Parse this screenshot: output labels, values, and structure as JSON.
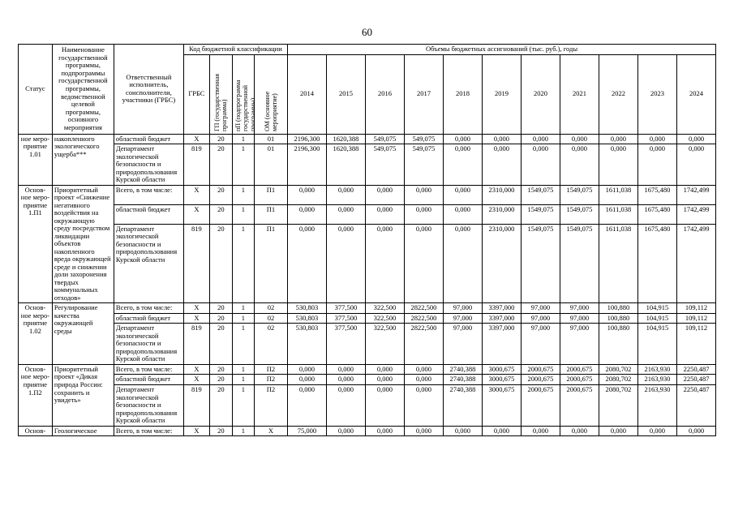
{
  "page": {
    "number": "60"
  },
  "table": {
    "headers": {
      "status": "Статус",
      "name": "Наименование государственной программы, подпрограммы государственной программы, ведомственной целевой программы, основного мероприятия",
      "executor": "Ответственный исполнитель, соисполнители, участники (ГРБС)",
      "budget_code": "Код бюджетной классификации",
      "volumes": "Объемы бюджетных ассигнований (тыс. руб.), годы",
      "grbs": "ГРБС",
      "gp": "ГП (государственная программа)",
      "pp": "пП (подпрограмма государственной программы)",
      "om": "ОМ (основное мероприятие)",
      "years": [
        "2014",
        "2015",
        "2016",
        "2017",
        "2018",
        "2019",
        "2020",
        "2021",
        "2022",
        "2023",
        "2024"
      ]
    },
    "groups": [
      {
        "status": "ное меро-приятие 1.01",
        "name": "накопленного экологического ущерба***",
        "rows": [
          {
            "executor": "областной бюджет",
            "bold": false,
            "codes": [
              "X",
              "20",
              "1",
              "01"
            ],
            "values": [
              "2196,300",
              "1620,388",
              "549,075",
              "549,075",
              "0,000",
              "0,000",
              "0,000",
              "0,000",
              "0,000",
              "0,000",
              "0,000"
            ]
          },
          {
            "executor": "Департамент экологической безопасности и природопользования Курской области",
            "bold": false,
            "codes": [
              "819",
              "20",
              "1",
              "01"
            ],
            "values": [
              "2196,300",
              "1620,388",
              "549,075",
              "549,075",
              "0,000",
              "0,000",
              "0,000",
              "0,000",
              "0,000",
              "0,000",
              "0,000"
            ]
          }
        ]
      },
      {
        "status": "Основ-ное меро-приятие 1.П1",
        "name": "Приоритетный проект «Снижение негативного воздействия на окружающую среду посредством ликвидации объектов накопленного вреда окружающей среде и снижении доли захоронения твердых коммунальных отходов»",
        "rows": [
          {
            "executor": "Всего, в том числе:",
            "bold": true,
            "codes": [
              "X",
              "20",
              "1",
              "П1"
            ],
            "values": [
              "0,000",
              "0,000",
              "0,000",
              "0,000",
              "0,000",
              "2310,000",
              "1549,075",
              "1549,075",
              "1611,038",
              "1675,480",
              "1742,499"
            ]
          },
          {
            "executor": "областной бюджет",
            "bold": false,
            "codes": [
              "X",
              "20",
              "1",
              "П1"
            ],
            "values": [
              "0,000",
              "0,000",
              "0,000",
              "0,000",
              "0,000",
              "2310,000",
              "1549,075",
              "1549,075",
              "1611,038",
              "1675,480",
              "1742,499"
            ]
          },
          {
            "executor": "Департамент экологической безопасности и природопользования Курской области",
            "bold": false,
            "codes": [
              "819",
              "20",
              "1",
              "П1"
            ],
            "values": [
              "0,000",
              "0,000",
              "0,000",
              "0,000",
              "0,000",
              "2310,000",
              "1549,075",
              "1549,075",
              "1611,038",
              "1675,480",
              "1742,499"
            ]
          }
        ]
      },
      {
        "status": "Основ-ное меро-приятие 1.02",
        "name": "Регулирование качества окружающей среды",
        "rows": [
          {
            "executor": "Всего, в том числе:",
            "bold": true,
            "codes": [
              "X",
              "20",
              "1",
              "02"
            ],
            "values": [
              "530,803",
              "377,500",
              "322,500",
              "2822,500",
              "97,000",
              "3397,000",
              "97,000",
              "97,000",
              "100,880",
              "104,915",
              "109,112"
            ]
          },
          {
            "executor": "областной бюджет",
            "bold": false,
            "codes": [
              "X",
              "20",
              "1",
              "02"
            ],
            "values": [
              "530,803",
              "377,500",
              "322,500",
              "2822,500",
              "97,000",
              "3397,000",
              "97,000",
              "97,000",
              "100,880",
              "104,915",
              "109,112"
            ]
          },
          {
            "executor": "Департамент экологической безопасности и природопользования Курской области",
            "bold": false,
            "codes": [
              "819",
              "20",
              "1",
              "02"
            ],
            "values": [
              "530,803",
              "377,500",
              "322,500",
              "2822,500",
              "97,000",
              "3397,000",
              "97,000",
              "97,000",
              "100,880",
              "104,915",
              "109,112"
            ]
          }
        ]
      },
      {
        "status": "Основ-ное меро-приятие 1.П2",
        "name": "Приоритетный проект «Дикая природа России: сохранить и увидеть»",
        "rows": [
          {
            "executor": "Всего, в том числе:",
            "bold": true,
            "codes": [
              "X",
              "20",
              "1",
              "П2"
            ],
            "values": [
              "0,000",
              "0,000",
              "0,000",
              "0,000",
              "2740,388",
              "3000,675",
              "2000,675",
              "2000,675",
              "2080,702",
              "2163,930",
              "2250,487"
            ]
          },
          {
            "executor": "областной бюджет",
            "bold": false,
            "codes": [
              "X",
              "20",
              "1",
              "П2"
            ],
            "values": [
              "0,000",
              "0,000",
              "0,000",
              "0,000",
              "2740,388",
              "3000,675",
              "2000,675",
              "2000,675",
              "2080,702",
              "2163,930",
              "2250,487"
            ]
          },
          {
            "executor": "Департамент экологической безопасности и природопользования Курской области",
            "bold": false,
            "codes": [
              "819",
              "20",
              "1",
              "П2"
            ],
            "values": [
              "0,000",
              "0,000",
              "0,000",
              "0,000",
              "2740,388",
              "3000,675",
              "2000,675",
              "2000,675",
              "2080,702",
              "2163,930",
              "2250,487"
            ]
          }
        ]
      },
      {
        "status": "Основ-",
        "name": "Геологическое",
        "rows": [
          {
            "executor": "Всего, в том числе:",
            "bold": true,
            "codes": [
              "X",
              "20",
              "1",
              "X"
            ],
            "values": [
              "75,000",
              "0,000",
              "0,000",
              "0,000",
              "0,000",
              "0,000",
              "0,000",
              "0,000",
              "0,000",
              "0,000",
              "0,000"
            ]
          }
        ]
      }
    ]
  }
}
